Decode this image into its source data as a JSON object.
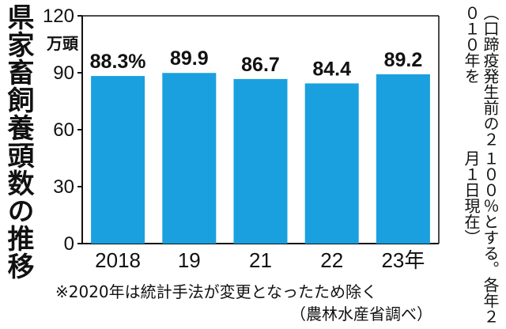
{
  "title": "県家畜飼養頭数の推移",
  "side_note": {
    "line1": "（口蹄疫発生前の２０１０年を",
    "line2": "１００％とする。各年２月１日現在）"
  },
  "footnote": "※2020年は統計手法が変更となったため除く",
  "source": "（農林水産省調べ）",
  "colors": {
    "bar": "#1aa0de",
    "text": "#111111"
  },
  "chart_data": {
    "type": "bar",
    "title": "県家畜飼養頭数の推移",
    "categories": [
      "2018",
      "19",
      "21",
      "22",
      "23年"
    ],
    "values": [
      88.3,
      89.9,
      86.7,
      84.4,
      89.2
    ],
    "value_labels": [
      "88.3%",
      "89.9",
      "86.7",
      "84.4",
      "89.2"
    ],
    "yticks": [
      "0",
      "30",
      "60",
      "90",
      "120"
    ],
    "ytick_values": [
      0,
      30,
      60,
      90,
      120
    ],
    "ylabel": "万頭",
    "ylim": [
      0,
      120
    ],
    "grid": false,
    "legend": "none"
  }
}
